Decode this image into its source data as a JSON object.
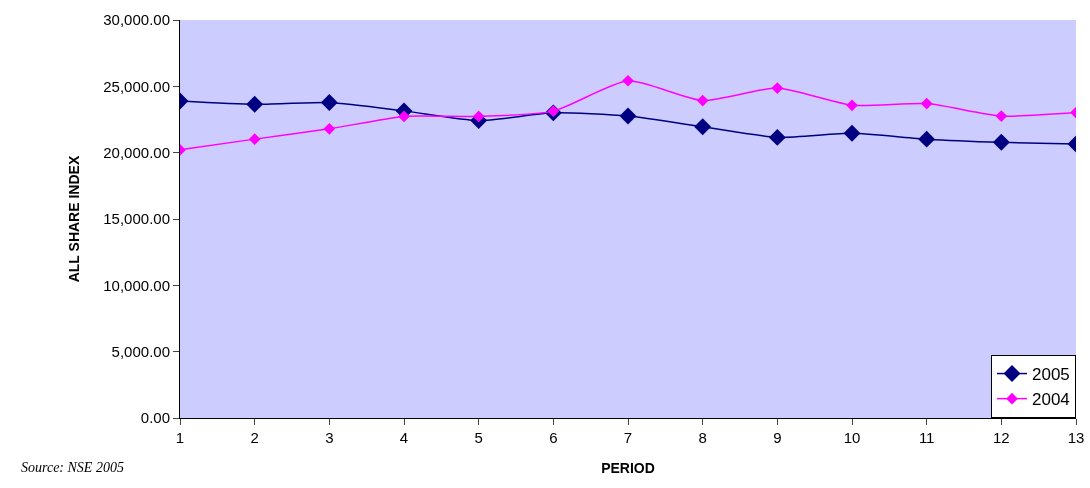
{
  "chart_data": {
    "type": "line",
    "xlabel": "PERIOD",
    "ylabel": "ALL SHARE INDEX",
    "annotations": [
      "Source: NSE 2005"
    ],
    "x": [
      1,
      2,
      3,
      4,
      5,
      6,
      7,
      8,
      9,
      10,
      11,
      12,
      13
    ],
    "series": [
      {
        "name": "2005",
        "color": "#000080",
        "values": [
          23900,
          23650,
          23780,
          23150,
          22420,
          23000,
          22760,
          21950,
          21150,
          21460,
          21020,
          20780,
          20650
        ]
      },
      {
        "name": "2004",
        "color": "#ff00ff",
        "values": [
          20210,
          21020,
          21800,
          22730,
          22730,
          23130,
          25420,
          23930,
          24870,
          23570,
          23700,
          22760,
          23020
        ]
      }
    ],
    "xlim": [
      1,
      13
    ],
    "xticks": [
      1,
      2,
      3,
      4,
      5,
      6,
      7,
      8,
      9,
      10,
      11,
      12,
      13
    ],
    "ylim": [
      0,
      30000
    ],
    "yticks": [
      {
        "value": 0,
        "label": "0.00"
      },
      {
        "value": 5000,
        "label": "5,000.00"
      },
      {
        "value": 10000,
        "label": "10,000.00"
      },
      {
        "value": 15000,
        "label": "15,000.00"
      },
      {
        "value": 20000,
        "label": "20,000.00"
      },
      {
        "value": 25000,
        "label": "25,000.00"
      },
      {
        "value": 30000,
        "label": "30,000.00"
      }
    ],
    "grid": false,
    "legend": "bottom right",
    "marker": "diamond",
    "line_style": "solid"
  }
}
